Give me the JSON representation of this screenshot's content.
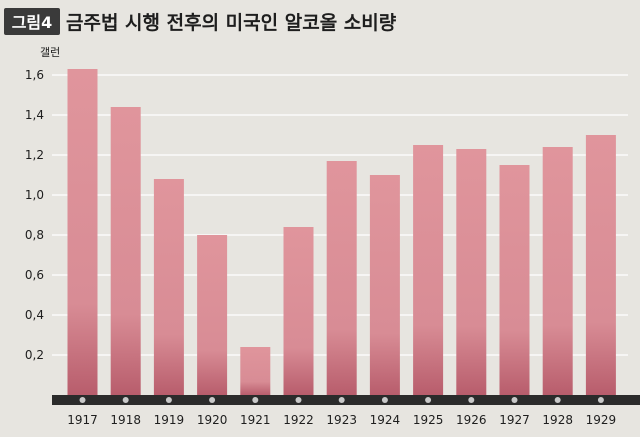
{
  "figure_label": "그림4",
  "title": "금주법 시행 전후의 미국인 알코올 소비량",
  "colors": {
    "background": "#e7e5e0",
    "label_box": "#3a3a3a",
    "bar_top": "#e0959c",
    "bar_bottom": "#b85d6c",
    "axis_strip": "#2b2b2b",
    "dot": "#c9c9c9",
    "text": "#1e1e1e",
    "gridline": "#ffffff"
  },
  "chart_data": {
    "type": "bar",
    "title": "금주법 시행 전후의 미국인 알코올 소비량",
    "ylabel": "갤런",
    "xlabel": "",
    "categories": [
      "1917",
      "1918",
      "1919",
      "1920",
      "1921",
      "1922",
      "1923",
      "1924",
      "1925",
      "1926",
      "1927",
      "1928",
      "1929"
    ],
    "values": [
      1.63,
      1.44,
      1.08,
      0.8,
      0.24,
      0.84,
      1.17,
      1.1,
      1.25,
      1.23,
      1.15,
      1.24,
      1.3
    ],
    "ylim": [
      0,
      1.7
    ],
    "yticks": [
      "0,2",
      "0,4",
      "0,6",
      "0,8",
      "1,0",
      "1,2",
      "1,4",
      "1,6"
    ],
    "ytick_values": [
      0.2,
      0.4,
      0.6,
      0.8,
      1.0,
      1.2,
      1.4,
      1.6
    ],
    "grid": true,
    "legend": "none"
  }
}
